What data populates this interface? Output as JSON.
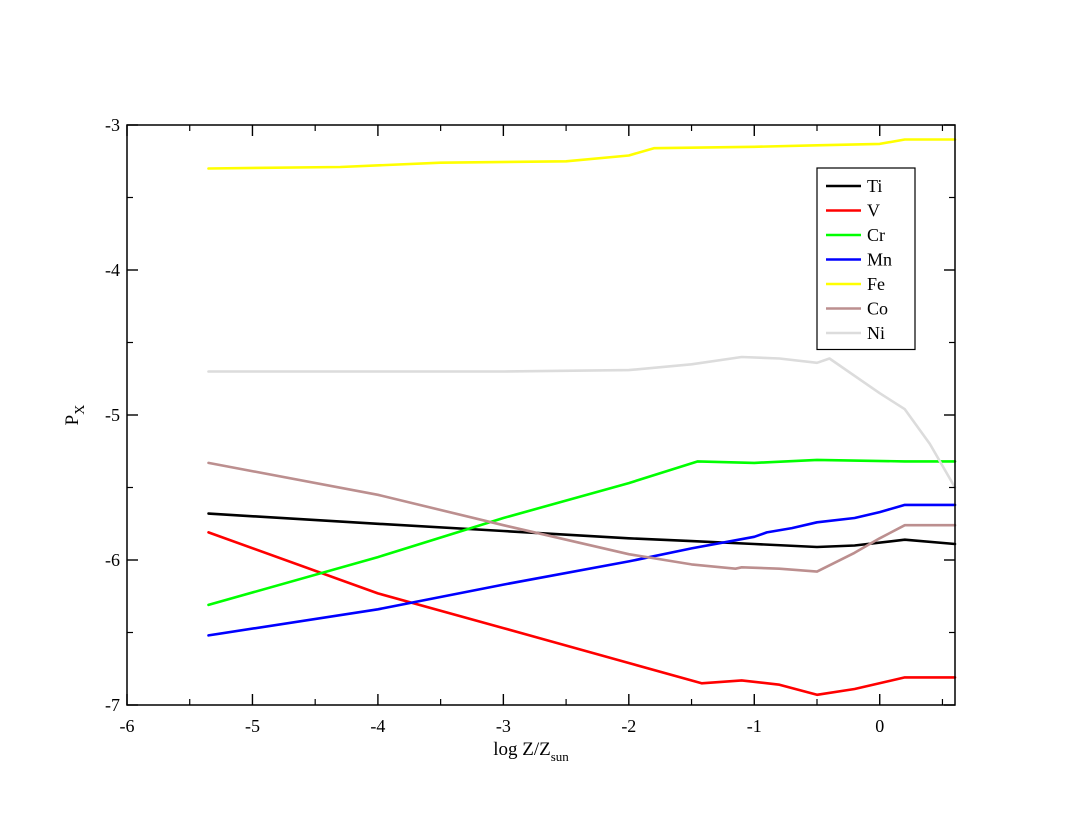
{
  "chart_data": {
    "type": "line",
    "title": "",
    "xlabel": "log Z/Z",
    "xlabel_sub": "sun",
    "ylabel": "P",
    "ylabel_sub": "X",
    "xlim": [
      -6,
      0.6
    ],
    "ylim": [
      -7,
      -3
    ],
    "x_major_ticks": [
      -6,
      -5,
      -4,
      -3,
      -2,
      -1,
      0
    ],
    "x_tick_labels": [
      "-6",
      "-5",
      "-4",
      "-3",
      "-2",
      "-1",
      "0"
    ],
    "y_major_ticks": [
      -7,
      -6,
      -5,
      -4,
      -3
    ],
    "y_tick_labels": [
      "-7",
      "-6",
      "-5",
      "-4",
      "-3"
    ],
    "grid": false,
    "legend_position": "top-right",
    "series": [
      {
        "name": "Ti",
        "color": "#000000",
        "x": [
          -5.35,
          -4.0,
          -3.0,
          -2.0,
          -1.5,
          -1.0,
          -0.5,
          -0.2,
          0.2,
          0.6
        ],
        "y": [
          -5.68,
          -5.75,
          -5.8,
          -5.85,
          -5.87,
          -5.89,
          -5.91,
          -5.9,
          -5.86,
          -5.89
        ]
      },
      {
        "name": "V",
        "color": "#ff0000",
        "x": [
          -5.35,
          -4.0,
          -3.0,
          -2.0,
          -1.42,
          -1.1,
          -0.8,
          -0.5,
          -0.2,
          0.2,
          0.6
        ],
        "y": [
          -5.81,
          -6.23,
          -6.47,
          -6.71,
          -6.85,
          -6.83,
          -6.86,
          -6.93,
          -6.89,
          -6.81,
          -6.81
        ]
      },
      {
        "name": "Cr",
        "color": "#00ff00",
        "x": [
          -5.35,
          -4.0,
          -3.0,
          -2.0,
          -1.45,
          -1.0,
          -0.5,
          0.2,
          0.6
        ],
        "y": [
          -6.31,
          -5.98,
          -5.71,
          -5.47,
          -5.32,
          -5.33,
          -5.31,
          -5.32,
          -5.32
        ]
      },
      {
        "name": "Mn",
        "color": "#0000ff",
        "x": [
          -5.35,
          -4.0,
          -3.0,
          -2.0,
          -1.5,
          -1.0,
          -0.9,
          -0.7,
          -0.5,
          -0.2,
          0.0,
          0.2,
          0.6
        ],
        "y": [
          -6.52,
          -6.34,
          -6.17,
          -6.01,
          -5.92,
          -5.84,
          -5.81,
          -5.78,
          -5.74,
          -5.71,
          -5.67,
          -5.62,
          -5.62
        ]
      },
      {
        "name": "Fe",
        "color": "#ffff00",
        "x": [
          -5.35,
          -4.3,
          -3.5,
          -2.5,
          -2.0,
          -1.8,
          -1.0,
          -0.5,
          0.0,
          0.2,
          0.6
        ],
        "y": [
          -3.3,
          -3.29,
          -3.26,
          -3.25,
          -3.21,
          -3.16,
          -3.15,
          -3.14,
          -3.13,
          -3.1,
          -3.1
        ]
      },
      {
        "name": "Co",
        "color": "#bc8f8f",
        "x": [
          -5.35,
          -4.0,
          -3.0,
          -2.0,
          -1.5,
          -1.15,
          -1.1,
          -0.8,
          -0.5,
          -0.2,
          0.0,
          0.2,
          0.6
        ],
        "y": [
          -5.33,
          -5.55,
          -5.76,
          -5.96,
          -6.03,
          -6.06,
          -6.05,
          -6.06,
          -6.08,
          -5.95,
          -5.85,
          -5.76,
          -5.76
        ]
      },
      {
        "name": "Ni",
        "color": "#dcdcdc",
        "x": [
          -5.35,
          -4.0,
          -3.0,
          -2.0,
          -1.5,
          -1.1,
          -0.8,
          -0.5,
          -0.4,
          0.0,
          0.2,
          0.4,
          0.6
        ],
        "y": [
          -4.7,
          -4.7,
          -4.7,
          -4.69,
          -4.65,
          -4.6,
          -4.61,
          -4.64,
          -4.61,
          -4.85,
          -4.96,
          -5.2,
          -5.5
        ]
      }
    ]
  }
}
